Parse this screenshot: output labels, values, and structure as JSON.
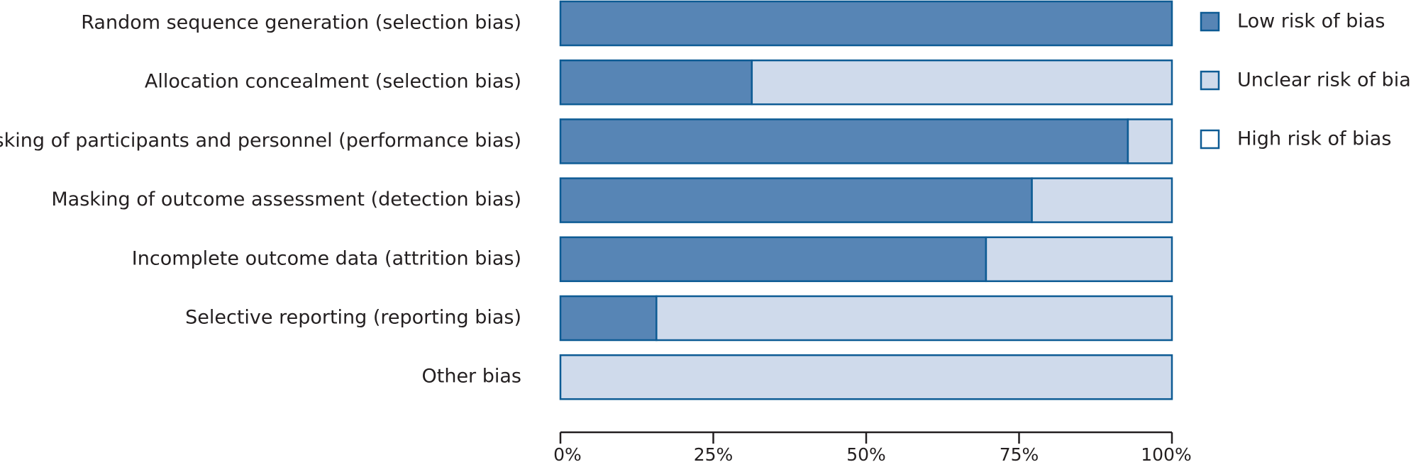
{
  "chart_data": {
    "type": "bar",
    "orientation": "horizontal",
    "stacked": true,
    "categories": [
      "Random sequence generation (selection bias)",
      "Allocation concealment (selection bias)",
      "Masking of participants and personnel (performance bias)",
      "Masking of outcome assessment (detection bias)",
      "Incomplete outcome data (attrition bias)",
      "Selective reporting (reporting bias)",
      "Other bias"
    ],
    "series": [
      {
        "name": "Low risk of bias",
        "color": "#5785b5",
        "values": [
          100,
          31.3,
          92.8,
          77.1,
          69.6,
          15.7,
          0
        ]
      },
      {
        "name": "Unclear risk of bias",
        "color": "#cfdaeb",
        "values": [
          0,
          68.7,
          7.2,
          22.9,
          30.4,
          84.3,
          100
        ]
      },
      {
        "name": "High risk of bias",
        "color": "#ffffff",
        "values": [
          0,
          0,
          0,
          0,
          0,
          0,
          0
        ]
      }
    ],
    "xlim": [
      0,
      100
    ],
    "x_ticks": [
      "0%",
      "25%",
      "50%",
      "75%",
      "100%"
    ],
    "x_tick_values": [
      0,
      25,
      50,
      75,
      100
    ],
    "grid": false,
    "legend_position": "right",
    "border_color": "#0d5b94",
    "axis_color": "#231f20"
  }
}
